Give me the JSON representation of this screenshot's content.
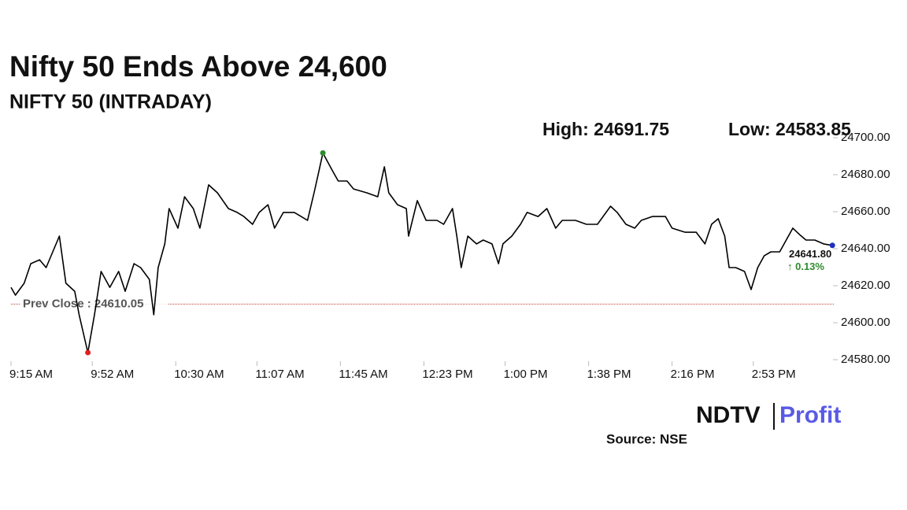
{
  "chart_data": {
    "type": "line",
    "title": "Nifty 50 Ends Above 24,600",
    "subtitle": "NIFTY 50 (INTRADAY)",
    "high_label": "High: 24691.75",
    "low_label": "Low: 24583.85",
    "prev_close": {
      "value": 24610.05,
      "label": "Prev Close : 24610.05"
    },
    "last_label": "24641.80",
    "change_label": "↑ 0.13%",
    "source": "Source: NSE",
    "logo": {
      "left": "NDTV",
      "right": "Profit"
    },
    "x": [
      555,
      557,
      561,
      564,
      568,
      571,
      577,
      580,
      584,
      586,
      590,
      593,
      596,
      600,
      604,
      607,
      611,
      614,
      618,
      620,
      622,
      625,
      627,
      631,
      634,
      638,
      641,
      645,
      649,
      654,
      658,
      661,
      665,
      668,
      672,
      675,
      679,
      684,
      690,
      693,
      695,
      697,
      701,
      704,
      708,
      711,
      717,
      722,
      725,
      727,
      731,
      735,
      736,
      740,
      744,
      749,
      752,
      756,
      758,
      760,
      763,
      767,
      770,
      774,
      777,
      779,
      783,
      787,
      790,
      795,
      799,
      803,
      806,
      812,
      817,
      822,
      828,
      831,
      835,
      839,
      842,
      847,
      853,
      856,
      862,
      867,
      871,
      874,
      877,
      880,
      882,
      885,
      889,
      892,
      895,
      898,
      901,
      905,
      908,
      911,
      914,
      917,
      921,
      925,
      929
    ],
    "series": [
      {
        "name": "NIFTY 50",
        "color": "#000000",
        "values": [
          24619.1,
          24614.9,
          24621.3,
          24631.9,
          24634.0,
          24629.8,
          24646.8,
          24621.3,
          24617.0,
          24604.3,
          24583.85,
          24604.3,
          24627.7,
          24619.1,
          24627.7,
          24617.0,
          24631.9,
          24629.8,
          24623.4,
          24604.3,
          24629.8,
          24642.6,
          24661.7,
          24651.1,
          24668.1,
          24661.7,
          24651.1,
          24674.5,
          24670.2,
          24661.7,
          24659.6,
          24657.4,
          24653.2,
          24659.6,
          24663.8,
          24651.1,
          24659.6,
          24659.6,
          24655.3,
          24670.2,
          24680.9,
          24691.75,
          24683.0,
          24676.6,
          24676.6,
          24672.3,
          24670.2,
          24668.1,
          24684.3,
          24670.2,
          24663.8,
          24661.7,
          24646.8,
          24666.0,
          24655.3,
          24655.3,
          24653.2,
          24661.7,
          24646.8,
          24629.8,
          24646.8,
          24642.6,
          24644.7,
          24642.6,
          24631.9,
          24642.6,
          24646.8,
          24653.2,
          24659.6,
          24657.4,
          24661.7,
          24651.1,
          24655.3,
          24655.3,
          24653.2,
          24653.2,
          24663.0,
          24659.6,
          24653.2,
          24651.1,
          24655.3,
          24657.4,
          24657.4,
          24651.1,
          24648.9,
          24648.9,
          24642.6,
          24653.2,
          24656.2,
          24646.8,
          24629.8,
          24629.8,
          24627.7,
          24617.9,
          24629.8,
          24636.2,
          24638.3,
          24638.3,
          24644.7,
          24651.1,
          24647.7,
          24644.7,
          24644.7,
          24642.6,
          24641.8
        ]
      }
    ],
    "high_color": "#2e8b2e",
    "low_color": "#e02020",
    "last_color": "#1f2fbf",
    "xlim": [
      555,
      930
    ],
    "xticks": [
      {
        "value": 555,
        "label": "9:15 AM"
      },
      {
        "value": 592,
        "label": "9:52 AM"
      },
      {
        "value": 630,
        "label": "10:30 AM"
      },
      {
        "value": 667,
        "label": "11:07 AM"
      },
      {
        "value": 705,
        "label": "11:45 AM"
      },
      {
        "value": 743,
        "label": "12:23 PM"
      },
      {
        "value": 780,
        "label": "1:00 PM"
      },
      {
        "value": 818,
        "label": "1:38 PM"
      },
      {
        "value": 856,
        "label": "2:16 PM"
      },
      {
        "value": 893,
        "label": "2:53 PM"
      }
    ],
    "ylim": [
      24580,
      24700
    ],
    "yticks": [
      {
        "value": 24580,
        "label": "24580.00"
      },
      {
        "value": 24600,
        "label": "24600.00"
      },
      {
        "value": 24620,
        "label": "24620.00"
      },
      {
        "value": 24640,
        "label": "24640.00"
      },
      {
        "value": 24660,
        "label": "24660.00"
      },
      {
        "value": 24680,
        "label": "24680.00"
      },
      {
        "value": 24700,
        "label": "24700.00"
      }
    ]
  }
}
